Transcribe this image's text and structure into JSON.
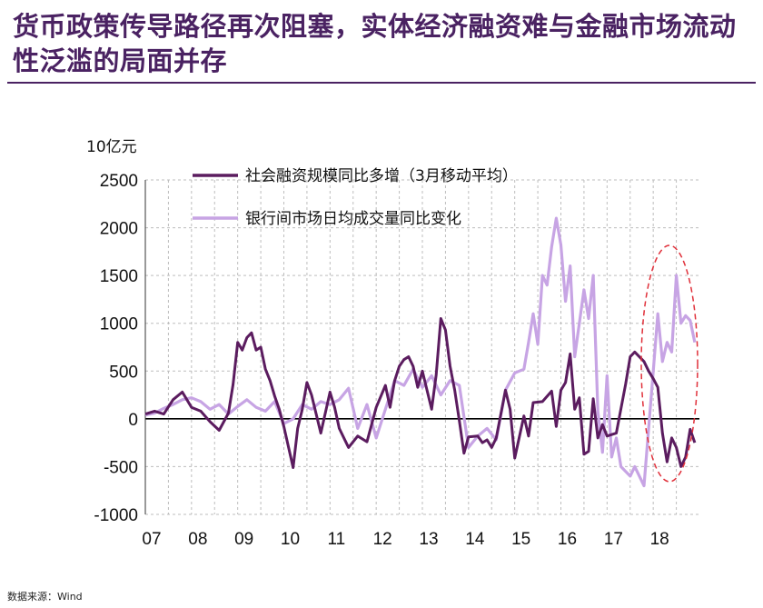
{
  "title": "货币政策传导路径再次阻塞，实体经济融资难与金融市场流动性泛滥的局面并存",
  "source": "数据来源：Wind",
  "chart_data": {
    "type": "line",
    "unit": "10亿元",
    "ylim": [
      -1000,
      2500
    ],
    "yticks": [
      2500,
      2000,
      1500,
      1000,
      500,
      0,
      -500,
      -1000
    ],
    "x_labels": [
      "07",
      "08",
      "09",
      "10",
      "11",
      "12",
      "13",
      "14",
      "15",
      "16",
      "17",
      "18"
    ],
    "grid": true,
    "legend_position": "top-right",
    "series": [
      {
        "name": "社会融资规模同比多增（3月移动平均）",
        "color": "#5b1c5f",
        "x": [
          2007.0,
          2007.2,
          2007.4,
          2007.6,
          2007.8,
          2008.0,
          2008.2,
          2008.4,
          2008.6,
          2008.8,
          2008.9,
          2009.0,
          2009.1,
          2009.2,
          2009.3,
          2009.4,
          2009.5,
          2009.6,
          2009.7,
          2009.8,
          2009.9,
          2010.0,
          2010.2,
          2010.3,
          2010.4,
          2010.5,
          2010.6,
          2010.8,
          2011.0,
          2011.1,
          2011.2,
          2011.4,
          2011.6,
          2011.8,
          2012.0,
          2012.2,
          2012.3,
          2012.4,
          2012.5,
          2012.6,
          2012.7,
          2012.8,
          2012.9,
          2013.0,
          2013.2,
          2013.3,
          2013.4,
          2013.5,
          2013.6,
          2013.7,
          2013.8,
          2013.9,
          2014.0,
          2014.2,
          2014.3,
          2014.4,
          2014.5,
          2014.6,
          2014.8,
          2014.9,
          2015.0,
          2015.2,
          2015.3,
          2015.4,
          2015.6,
          2015.8,
          2015.9,
          2016.0,
          2016.1,
          2016.2,
          2016.3,
          2016.4,
          2016.5,
          2016.6,
          2016.7,
          2016.8,
          2016.9,
          2017.0,
          2017.2,
          2017.4,
          2017.5,
          2017.6,
          2017.8,
          2017.9,
          2018.0,
          2018.1,
          2018.2,
          2018.3,
          2018.4,
          2018.5,
          2018.6,
          2018.7,
          2018.8,
          2018.9
        ],
        "values": [
          50,
          80,
          50,
          200,
          280,
          120,
          80,
          -30,
          -120,
          60,
          360,
          800,
          720,
          850,
          900,
          720,
          750,
          520,
          400,
          240,
          100,
          -80,
          -510,
          -100,
          100,
          380,
          250,
          -150,
          280,
          120,
          -100,
          -300,
          -180,
          -240,
          120,
          350,
          120,
          400,
          550,
          620,
          650,
          550,
          330,
          500,
          100,
          460,
          1050,
          930,
          550,
          300,
          -20,
          -360,
          -190,
          -180,
          -250,
          -220,
          -300,
          -200,
          300,
          100,
          -410,
          30,
          -180,
          170,
          180,
          290,
          -80,
          300,
          380,
          680,
          100,
          220,
          -370,
          -340,
          210,
          -200,
          -60,
          -180,
          -150,
          360,
          650,
          700,
          600,
          500,
          420,
          330,
          -150,
          -450,
          -200,
          -300,
          -500,
          -400,
          -110,
          -250
        ]
      },
      {
        "name": "银行间市场日均成交量同比变化",
        "color": "#c7a4e4",
        "x": [
          2007.0,
          2007.2,
          2007.4,
          2007.6,
          2007.8,
          2008.0,
          2008.2,
          2008.4,
          2008.6,
          2008.8,
          2009.0,
          2009.2,
          2009.4,
          2009.6,
          2009.8,
          2010.0,
          2010.2,
          2010.4,
          2010.6,
          2010.8,
          2011.0,
          2011.2,
          2011.4,
          2011.6,
          2011.8,
          2012.0,
          2012.2,
          2012.4,
          2012.6,
          2012.8,
          2013.0,
          2013.2,
          2013.4,
          2013.6,
          2013.8,
          2014.0,
          2014.2,
          2014.4,
          2014.6,
          2014.8,
          2015.0,
          2015.1,
          2015.2,
          2015.3,
          2015.4,
          2015.5,
          2015.6,
          2015.7,
          2015.8,
          2015.9,
          2016.0,
          2016.1,
          2016.2,
          2016.3,
          2016.4,
          2016.5,
          2016.6,
          2016.7,
          2016.8,
          2016.9,
          2017.0,
          2017.1,
          2017.2,
          2017.3,
          2017.4,
          2017.5,
          2017.6,
          2017.7,
          2017.8,
          2018.0,
          2018.1,
          2018.2,
          2018.3,
          2018.4,
          2018.5,
          2018.6,
          2018.7,
          2018.8,
          2018.9
        ],
        "values": [
          40,
          60,
          110,
          150,
          200,
          220,
          180,
          100,
          150,
          50,
          130,
          200,
          120,
          80,
          180,
          -50,
          0,
          150,
          100,
          180,
          150,
          200,
          320,
          -100,
          150,
          -200,
          100,
          400,
          350,
          520,
          330,
          450,
          250,
          400,
          350,
          -300,
          -180,
          -100,
          -220,
          300,
          480,
          500,
          520,
          800,
          1100,
          780,
          1500,
          1400,
          1800,
          2100,
          1820,
          1230,
          1600,
          650,
          1000,
          1350,
          1050,
          1500,
          80,
          -350,
          450,
          -400,
          -200,
          -500,
          -550,
          -600,
          -500,
          -600,
          -700,
          500,
          1100,
          600,
          800,
          700,
          1500,
          1000,
          1080,
          1030,
          800
        ]
      }
    ],
    "annotation": "red dashed ellipse highlighting 2018"
  }
}
